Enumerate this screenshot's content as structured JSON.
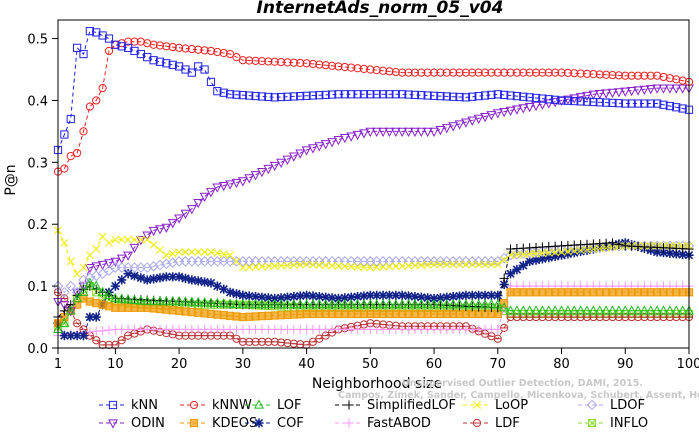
{
  "chart_data": {
    "type": "line",
    "title": "InternetAds_norm_05_v04",
    "xlabel": "Neighborhood size",
    "ylabel": "P@n",
    "xlim": [
      1,
      100
    ],
    "ylim": [
      0,
      0.53
    ],
    "x_ticks": [
      1,
      10,
      20,
      30,
      40,
      50,
      60,
      70,
      80,
      90,
      100
    ],
    "y_ticks": [
      0.0,
      0.1,
      0.2,
      0.3,
      0.4,
      0.5
    ],
    "y_tick_labels": [
      "0.0",
      "0.1",
      "0.2",
      "0.3",
      "0.4",
      "0.5"
    ],
    "grid": false,
    "legend_position": "bottom",
    "watermark": [
      "Unsupervised Outlier Detection, DAMI, 2015.",
      "Campos, Zimek, Sander, Campello, Micenkova, Schubert, Assent, Houle"
    ],
    "series": [
      {
        "name": "kNN",
        "color": "#2222ee",
        "marker": "square",
        "dash": "4,3",
        "points": [
          [
            1,
            0.32
          ],
          [
            2,
            0.345
          ],
          [
            3,
            0.37
          ],
          [
            4,
            0.485
          ],
          [
            5,
            0.475
          ],
          [
            6,
            0.512
          ],
          [
            7,
            0.51
          ],
          [
            8,
            0.505
          ],
          [
            9,
            0.5
          ],
          [
            10,
            0.49
          ],
          [
            12,
            0.485
          ],
          [
            14,
            0.475
          ],
          [
            16,
            0.465
          ],
          [
            18,
            0.46
          ],
          [
            20,
            0.455
          ],
          [
            22,
            0.445
          ],
          [
            23,
            0.455
          ],
          [
            24,
            0.45
          ],
          [
            25,
            0.43
          ],
          [
            26,
            0.415
          ],
          [
            28,
            0.41
          ],
          [
            35,
            0.405
          ],
          [
            45,
            0.41
          ],
          [
            55,
            0.41
          ],
          [
            65,
            0.405
          ],
          [
            70,
            0.41
          ],
          [
            80,
            0.4
          ],
          [
            90,
            0.395
          ],
          [
            95,
            0.395
          ],
          [
            100,
            0.385
          ]
        ]
      },
      {
        "name": "kNNW",
        "color": "#ee2222",
        "marker": "circle",
        "dash": "4,3",
        "points": [
          [
            1,
            0.285
          ],
          [
            2,
            0.29
          ],
          [
            3,
            0.31
          ],
          [
            4,
            0.315
          ],
          [
            5,
            0.35
          ],
          [
            6,
            0.39
          ],
          [
            7,
            0.4
          ],
          [
            8,
            0.42
          ],
          [
            9,
            0.48
          ],
          [
            10,
            0.49
          ],
          [
            12,
            0.495
          ],
          [
            14,
            0.495
          ],
          [
            16,
            0.49
          ],
          [
            20,
            0.485
          ],
          [
            25,
            0.48
          ],
          [
            28,
            0.475
          ],
          [
            30,
            0.465
          ],
          [
            40,
            0.46
          ],
          [
            50,
            0.45
          ],
          [
            55,
            0.445
          ],
          [
            60,
            0.445
          ],
          [
            70,
            0.445
          ],
          [
            80,
            0.445
          ],
          [
            90,
            0.44
          ],
          [
            95,
            0.44
          ],
          [
            100,
            0.43
          ]
        ]
      },
      {
        "name": "LOF",
        "color": "#22bb22",
        "marker": "triangle-up",
        "dash": "4,3",
        "points": [
          [
            1,
            0.03
          ],
          [
            2,
            0.04
          ],
          [
            3,
            0.06
          ],
          [
            4,
            0.08
          ],
          [
            5,
            0.09
          ],
          [
            6,
            0.105
          ],
          [
            7,
            0.1
          ],
          [
            8,
            0.09
          ],
          [
            10,
            0.08
          ],
          [
            15,
            0.075
          ],
          [
            20,
            0.075
          ],
          [
            30,
            0.07
          ],
          [
            40,
            0.07
          ],
          [
            50,
            0.07
          ],
          [
            60,
            0.07
          ],
          [
            70,
            0.07
          ],
          [
            72,
            0.06
          ],
          [
            80,
            0.06
          ],
          [
            90,
            0.06
          ],
          [
            100,
            0.06
          ]
        ]
      },
      {
        "name": "SimplifiedLOF",
        "color": "#000000",
        "marker": "plus",
        "dash": "4,3",
        "points": [
          [
            1,
            0.05
          ],
          [
            2,
            0.06
          ],
          [
            3,
            0.07
          ],
          [
            4,
            0.085
          ],
          [
            5,
            0.095
          ],
          [
            6,
            0.1
          ],
          [
            8,
            0.09
          ],
          [
            10,
            0.08
          ],
          [
            20,
            0.075
          ],
          [
            30,
            0.07
          ],
          [
            40,
            0.07
          ],
          [
            50,
            0.07
          ],
          [
            60,
            0.07
          ],
          [
            70,
            0.065
          ],
          [
            72,
            0.16
          ],
          [
            80,
            0.165
          ],
          [
            88,
            0.17
          ],
          [
            90,
            0.165
          ],
          [
            100,
            0.16
          ]
        ]
      },
      {
        "name": "LoOP",
        "color": "#eeee00",
        "marker": "x",
        "dash": "4,3",
        "points": [
          [
            1,
            0.19
          ],
          [
            2,
            0.17
          ],
          [
            3,
            0.14
          ],
          [
            4,
            0.12
          ],
          [
            5,
            0.13
          ],
          [
            6,
            0.15
          ],
          [
            7,
            0.16
          ],
          [
            8,
            0.18
          ],
          [
            9,
            0.17
          ],
          [
            10,
            0.175
          ],
          [
            15,
            0.175
          ],
          [
            18,
            0.15
          ],
          [
            20,
            0.155
          ],
          [
            25,
            0.155
          ],
          [
            28,
            0.15
          ],
          [
            30,
            0.13
          ],
          [
            40,
            0.135
          ],
          [
            50,
            0.13
          ],
          [
            60,
            0.135
          ],
          [
            70,
            0.135
          ],
          [
            72,
            0.15
          ],
          [
            80,
            0.155
          ],
          [
            90,
            0.165
          ],
          [
            100,
            0.165
          ]
        ]
      },
      {
        "name": "LDOF",
        "color": "#aaaaee",
        "marker": "diamond",
        "dash": "4,3",
        "points": [
          [
            1,
            0.1
          ],
          [
            2,
            0.09
          ],
          [
            3,
            0.1
          ],
          [
            4,
            0.09
          ],
          [
            5,
            0.11
          ],
          [
            8,
            0.12
          ],
          [
            10,
            0.13
          ],
          [
            15,
            0.13
          ],
          [
            20,
            0.14
          ],
          [
            25,
            0.14
          ],
          [
            30,
            0.14
          ],
          [
            40,
            0.14
          ],
          [
            50,
            0.14
          ],
          [
            60,
            0.14
          ],
          [
            70,
            0.14
          ],
          [
            72,
            0.15
          ],
          [
            80,
            0.16
          ],
          [
            90,
            0.165
          ],
          [
            100,
            0.165
          ]
        ]
      },
      {
        "name": "ODIN",
        "color": "#8822cc",
        "marker": "triangle-down",
        "dash": "4,3",
        "points": [
          [
            1,
            0.075
          ],
          [
            2,
            0.07
          ],
          [
            3,
            0.06
          ],
          [
            4,
            0.09
          ],
          [
            5,
            0.1
          ],
          [
            6,
            0.13
          ],
          [
            8,
            0.135
          ],
          [
            10,
            0.14
          ],
          [
            12,
            0.15
          ],
          [
            14,
            0.175
          ],
          [
            16,
            0.19
          ],
          [
            18,
            0.195
          ],
          [
            20,
            0.21
          ],
          [
            22,
            0.225
          ],
          [
            24,
            0.245
          ],
          [
            26,
            0.26
          ],
          [
            28,
            0.265
          ],
          [
            30,
            0.27
          ],
          [
            32,
            0.28
          ],
          [
            35,
            0.295
          ],
          [
            38,
            0.31
          ],
          [
            40,
            0.32
          ],
          [
            43,
            0.33
          ],
          [
            46,
            0.34
          ],
          [
            50,
            0.35
          ],
          [
            55,
            0.35
          ],
          [
            60,
            0.35
          ],
          [
            65,
            0.365
          ],
          [
            70,
            0.38
          ],
          [
            75,
            0.39
          ],
          [
            80,
            0.4
          ],
          [
            85,
            0.41
          ],
          [
            90,
            0.415
          ],
          [
            95,
            0.42
          ],
          [
            100,
            0.42
          ]
        ]
      },
      {
        "name": "KDEOS",
        "color": "#ee9900",
        "marker": "square-filled",
        "dash": "4,3",
        "points": [
          [
            1,
            0.04
          ],
          [
            2,
            0.05
          ],
          [
            3,
            0.06
          ],
          [
            4,
            0.07
          ],
          [
            5,
            0.08
          ],
          [
            6,
            0.075
          ],
          [
            8,
            0.07
          ],
          [
            10,
            0.065
          ],
          [
            15,
            0.065
          ],
          [
            20,
            0.06
          ],
          [
            25,
            0.055
          ],
          [
            30,
            0.05
          ],
          [
            40,
            0.055
          ],
          [
            50,
            0.055
          ],
          [
            60,
            0.055
          ],
          [
            70,
            0.055
          ],
          [
            72,
            0.09
          ],
          [
            80,
            0.09
          ],
          [
            90,
            0.09
          ],
          [
            100,
            0.09
          ]
        ]
      },
      {
        "name": "COF",
        "color": "#112288",
        "marker": "asterisk",
        "dash": "4,3",
        "points": [
          [
            1,
            0.04
          ],
          [
            2,
            0.02
          ],
          [
            3,
            0.02
          ],
          [
            4,
            0.02
          ],
          [
            5,
            0.02
          ],
          [
            6,
            0.05
          ],
          [
            7,
            0.05
          ],
          [
            8,
            0.07
          ],
          [
            9,
            0.09
          ],
          [
            10,
            0.1
          ],
          [
            12,
            0.12
          ],
          [
            15,
            0.11
          ],
          [
            18,
            0.115
          ],
          [
            20,
            0.115
          ],
          [
            22,
            0.11
          ],
          [
            25,
            0.105
          ],
          [
            28,
            0.09
          ],
          [
            30,
            0.085
          ],
          [
            35,
            0.08
          ],
          [
            40,
            0.085
          ],
          [
            45,
            0.08
          ],
          [
            50,
            0.085
          ],
          [
            55,
            0.085
          ],
          [
            60,
            0.08
          ],
          [
            65,
            0.085
          ],
          [
            70,
            0.085
          ],
          [
            72,
            0.12
          ],
          [
            75,
            0.14
          ],
          [
            80,
            0.15
          ],
          [
            85,
            0.16
          ],
          [
            90,
            0.17
          ],
          [
            95,
            0.155
          ],
          [
            100,
            0.15
          ]
        ]
      },
      {
        "name": "FastABOD",
        "color": "#ff99ff",
        "marker": "plus-pink",
        "dash": "4,3",
        "points": [
          [
            1,
            0.02
          ],
          [
            5,
            0.025
          ],
          [
            10,
            0.03
          ],
          [
            20,
            0.03
          ],
          [
            30,
            0.03
          ],
          [
            40,
            0.03
          ],
          [
            50,
            0.03
          ],
          [
            60,
            0.03
          ],
          [
            70,
            0.03
          ],
          [
            72,
            0.1
          ],
          [
            80,
            0.1
          ],
          [
            90,
            0.1
          ],
          [
            100,
            0.1
          ]
        ]
      },
      {
        "name": "LDF",
        "color": "#bb3333",
        "marker": "circle-filled",
        "dash": "4,3",
        "points": [
          [
            1,
            0.09
          ],
          [
            2,
            0.08
          ],
          [
            3,
            0.06
          ],
          [
            4,
            0.04
          ],
          [
            5,
            0.03
          ],
          [
            6,
            0.02
          ],
          [
            8,
            0.005
          ],
          [
            10,
            0.005
          ],
          [
            12,
            0.02
          ],
          [
            15,
            0.03
          ],
          [
            20,
            0.02
          ],
          [
            25,
            0.02
          ],
          [
            28,
            0.02
          ],
          [
            30,
            0.01
          ],
          [
            35,
            0.01
          ],
          [
            40,
            0.005
          ],
          [
            45,
            0.03
          ],
          [
            50,
            0.04
          ],
          [
            55,
            0.035
          ],
          [
            60,
            0.035
          ],
          [
            65,
            0.035
          ],
          [
            70,
            0.015
          ],
          [
            72,
            0.05
          ],
          [
            80,
            0.05
          ],
          [
            90,
            0.05
          ],
          [
            100,
            0.05
          ]
        ]
      },
      {
        "name": "INFLO",
        "color": "#88dd33",
        "marker": "square-x",
        "dash": "4,3",
        "points": [
          [
            1,
            0.035
          ],
          [
            2,
            0.04
          ],
          [
            3,
            0.06
          ],
          [
            4,
            0.08
          ],
          [
            5,
            0.095
          ],
          [
            6,
            0.1
          ],
          [
            7,
            0.09
          ],
          [
            8,
            0.08
          ],
          [
            10,
            0.075
          ],
          [
            15,
            0.07
          ],
          [
            20,
            0.07
          ],
          [
            30,
            0.07
          ],
          [
            40,
            0.065
          ],
          [
            50,
            0.065
          ],
          [
            60,
            0.065
          ],
          [
            70,
            0.065
          ],
          [
            72,
            0.055
          ],
          [
            80,
            0.055
          ],
          [
            90,
            0.055
          ],
          [
            100,
            0.055
          ]
        ]
      }
    ]
  }
}
